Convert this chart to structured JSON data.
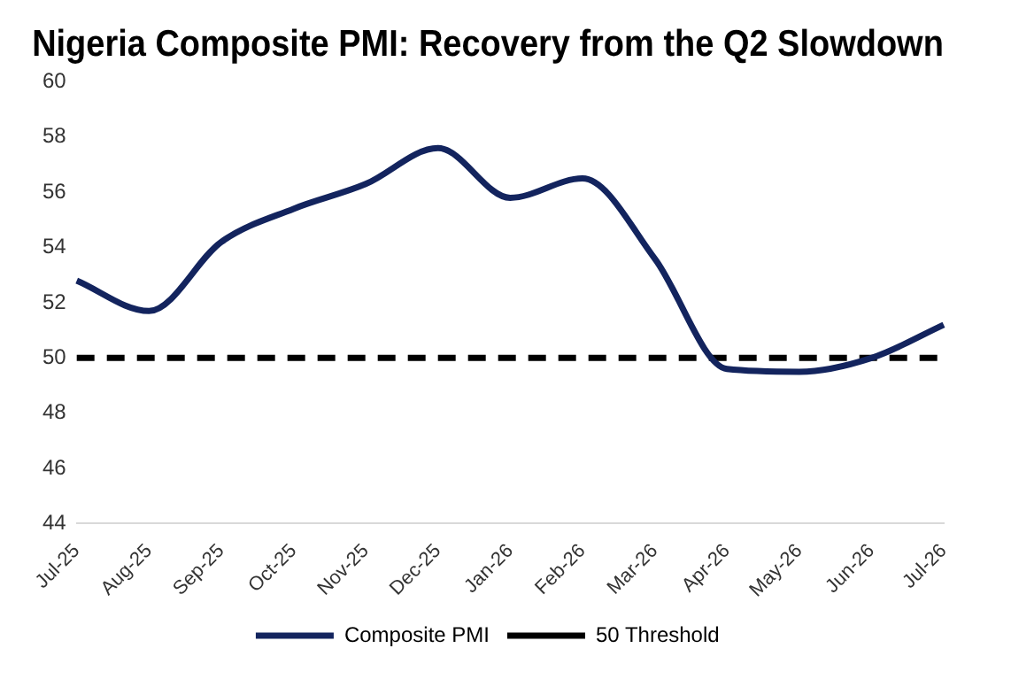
{
  "chart_data": {
    "type": "line",
    "title": "Nigeria Composite PMI: Recovery from the Q2 Slowdown",
    "categories": [
      "Jul-25",
      "Aug-25",
      "Sep-25",
      "Oct-25",
      "Nov-25",
      "Dec-25",
      "Jan-26",
      "Feb-26",
      "Mar-26",
      "Apr-26",
      "May-26",
      "Jun-26",
      "Jul-26"
    ],
    "series": [
      {
        "name": "Composite PMI",
        "color": "#13245e",
        "line_style": "solid",
        "values": [
          52.8,
          51.7,
          54.2,
          55.4,
          56.3,
          57.6,
          55.8,
          56.5,
          53.6,
          49.6,
          49.5,
          50.0,
          51.2
        ]
      },
      {
        "name": "50 Threshold",
        "color": "#000000",
        "line_style": "dashed",
        "values": [
          50,
          50,
          50,
          50,
          50,
          50,
          50,
          50,
          50,
          50,
          50,
          50,
          50
        ]
      }
    ],
    "ylim": [
      44,
      60
    ],
    "yticks": [
      44,
      46,
      48,
      50,
      52,
      54,
      56,
      58,
      60
    ],
    "grid": false,
    "legend": "bottom",
    "marker": "none"
  }
}
